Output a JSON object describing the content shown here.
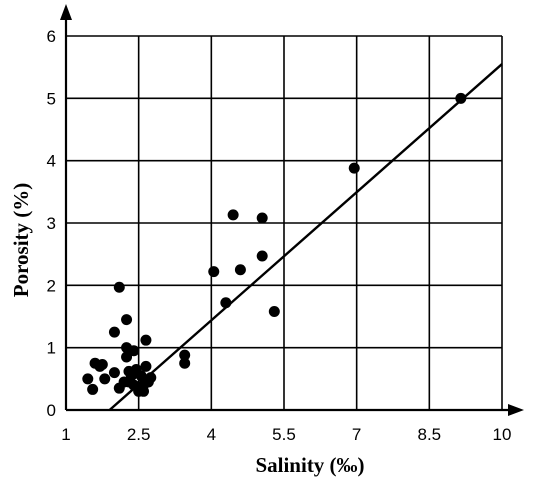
{
  "chart_data": {
    "type": "scatter",
    "title": "",
    "xlabel": "Salinity (‰)",
    "ylabel": "Porosity (%)",
    "xlim": [
      1,
      10
    ],
    "ylim": [
      0,
      6
    ],
    "x_ticks": [
      1,
      2.5,
      4,
      5.5,
      7,
      8.5,
      10
    ],
    "x_tick_labels": [
      "1",
      "2.5",
      "4",
      "5.5",
      "7",
      "8.5",
      "10"
    ],
    "y_ticks": [
      0,
      1,
      2,
      3,
      4,
      5,
      6
    ],
    "y_tick_labels": [
      "0",
      "1",
      "2",
      "3",
      "4",
      "5",
      "6"
    ],
    "grid": true,
    "legend": "none",
    "series": [
      {
        "points": [
          [
            1.45,
            0.5
          ],
          [
            1.55,
            0.33
          ],
          [
            1.6,
            0.75
          ],
          [
            1.7,
            0.7
          ],
          [
            1.75,
            0.73
          ],
          [
            1.8,
            0.5
          ],
          [
            2.0,
            1.25
          ],
          [
            2.0,
            0.6
          ],
          [
            2.1,
            1.97
          ],
          [
            2.1,
            0.35
          ],
          [
            2.2,
            0.45
          ],
          [
            2.25,
            1.45
          ],
          [
            2.25,
            0.85
          ],
          [
            2.25,
            1.0
          ],
          [
            2.3,
            0.62
          ],
          [
            2.3,
            0.45
          ],
          [
            2.35,
            0.55
          ],
          [
            2.4,
            0.95
          ],
          [
            2.4,
            0.4
          ],
          [
            2.45,
            0.65
          ],
          [
            2.5,
            0.3
          ],
          [
            2.55,
            0.55
          ],
          [
            2.6,
            0.4
          ],
          [
            2.65,
            1.12
          ],
          [
            2.65,
            0.7
          ],
          [
            2.7,
            0.45
          ],
          [
            2.75,
            0.52
          ],
          [
            2.6,
            0.3
          ],
          [
            3.45,
            0.88
          ],
          [
            3.45,
            0.75
          ],
          [
            4.05,
            2.22
          ],
          [
            4.3,
            1.72
          ],
          [
            4.45,
            3.13
          ],
          [
            4.6,
            2.25
          ],
          [
            5.05,
            3.08
          ],
          [
            5.05,
            2.47
          ],
          [
            5.3,
            1.58
          ],
          [
            6.95,
            3.88
          ],
          [
            9.15,
            5.0
          ]
        ]
      }
    ],
    "trendline": {
      "type": "linear",
      "from": [
        1.9,
        0.0
      ],
      "to": [
        10.0,
        5.55
      ]
    }
  }
}
